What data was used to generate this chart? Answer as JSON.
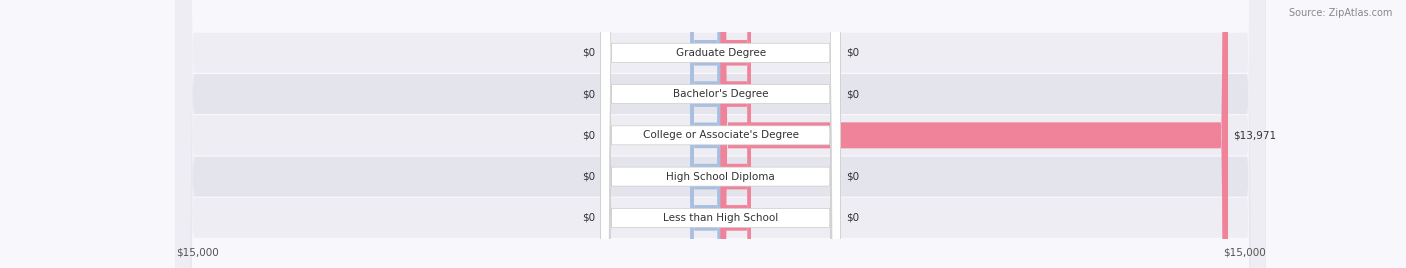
{
  "source": "Source: ZipAtlas.com",
  "categories": [
    "Less than High School",
    "High School Diploma",
    "College or Associate's Degree",
    "Bachelor's Degree",
    "Graduate Degree"
  ],
  "male_values": [
    0,
    0,
    0,
    0,
    0
  ],
  "female_values": [
    0,
    0,
    13971,
    0,
    0
  ],
  "male_color": "#a8bfe0",
  "female_color": "#f0829a",
  "bar_bg_color": "#e8e8ee",
  "row_bg_colors": [
    "#f0f0f5",
    "#e8e8f0"
  ],
  "max_value": 15000,
  "xlabel_left": "$15,000",
  "xlabel_right": "$15,000",
  "figsize": [
    14.06,
    2.68
  ],
  "dpi": 100
}
